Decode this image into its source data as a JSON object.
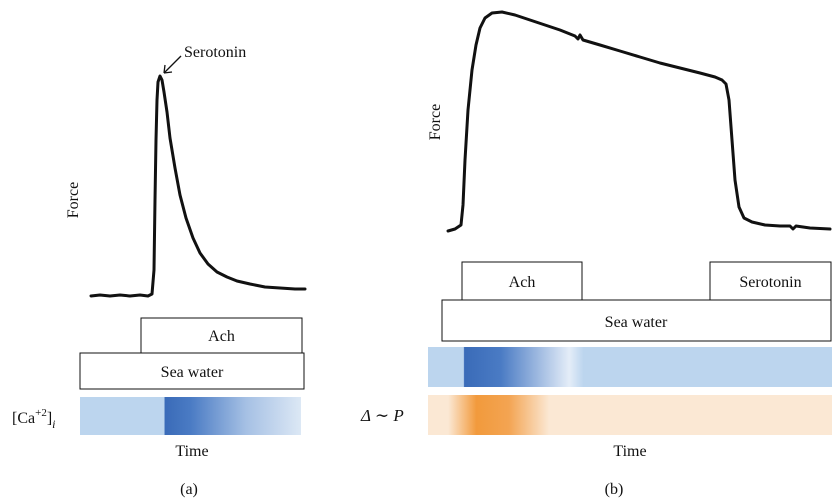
{
  "panel_a": {
    "caption": "(a)",
    "y_label": "Force",
    "x_label": "Time",
    "peak_annotation": "Serotonin",
    "box_ach": "Ach",
    "box_seawater": "Sea water",
    "ca_label_base": "[Ca",
    "ca_label_sup": "+2",
    "ca_label_close": "]",
    "ca_label_sub": "i"
  },
  "panel_b": {
    "caption": "(b)",
    "y_label": "Force",
    "x_label": "Time",
    "box_ach": "Ach",
    "box_serotonin": "Serotonin",
    "box_seawater": "Sea water",
    "delta_label": "Δ ∼ P"
  },
  "colors": {
    "trace": "#111111",
    "ca_light": "#bcd5ee",
    "ca_dark": "#3a6bb8",
    "ca_pale": "#dce8f5",
    "p_light": "#fbe8d4",
    "p_dark": "#f29a3c"
  }
}
